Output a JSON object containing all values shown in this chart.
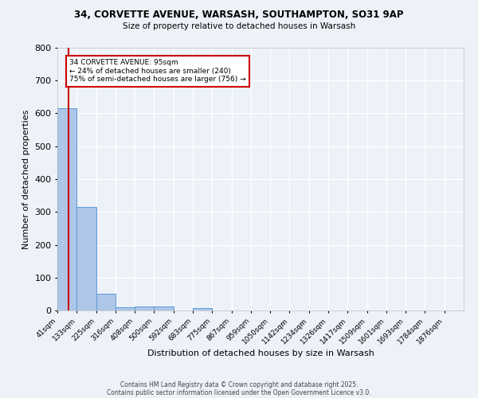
{
  "title_line1": "34, CORVETTE AVENUE, WARSASH, SOUTHAMPTON, SO31 9AP",
  "title_line2": "Size of property relative to detached houses in Warsash",
  "xlabel": "Distribution of detached houses by size in Warsash",
  "ylabel": "Number of detached properties",
  "bin_labels": [
    "41sqm",
    "133sqm",
    "225sqm",
    "316sqm",
    "408sqm",
    "500sqm",
    "592sqm",
    "683sqm",
    "775sqm",
    "867sqm",
    "959sqm",
    "1050sqm",
    "1142sqm",
    "1234sqm",
    "1326sqm",
    "1417sqm",
    "1509sqm",
    "1601sqm",
    "1693sqm",
    "1784sqm",
    "1876sqm"
  ],
  "bin_counts": [
    616,
    316,
    52,
    10,
    13,
    13,
    0,
    8,
    0,
    0,
    0,
    0,
    0,
    0,
    0,
    0,
    0,
    0,
    0,
    0,
    0
  ],
  "bar_color": "#aec6e8",
  "bar_edge_color": "#5b9bd5",
  "vline_color": "#cc0000",
  "annotation_text": "34 CORVETTE AVENUE: 95sqm\n← 24% of detached houses are smaller (240)\n75% of semi-detached houses are larger (756) →",
  "annotation_box_color": "white",
  "annotation_box_edge_color": "#cc0000",
  "ylim": [
    0,
    800
  ],
  "yticks": [
    0,
    100,
    200,
    300,
    400,
    500,
    600,
    700,
    800
  ],
  "background_color": "#edf2f9",
  "grid_color": "white",
  "footer_line1": "Contains HM Land Registry data © Crown copyright and database right 2025.",
  "footer_line2": "Contains public sector information licensed under the Open Government Licence v3.0."
}
